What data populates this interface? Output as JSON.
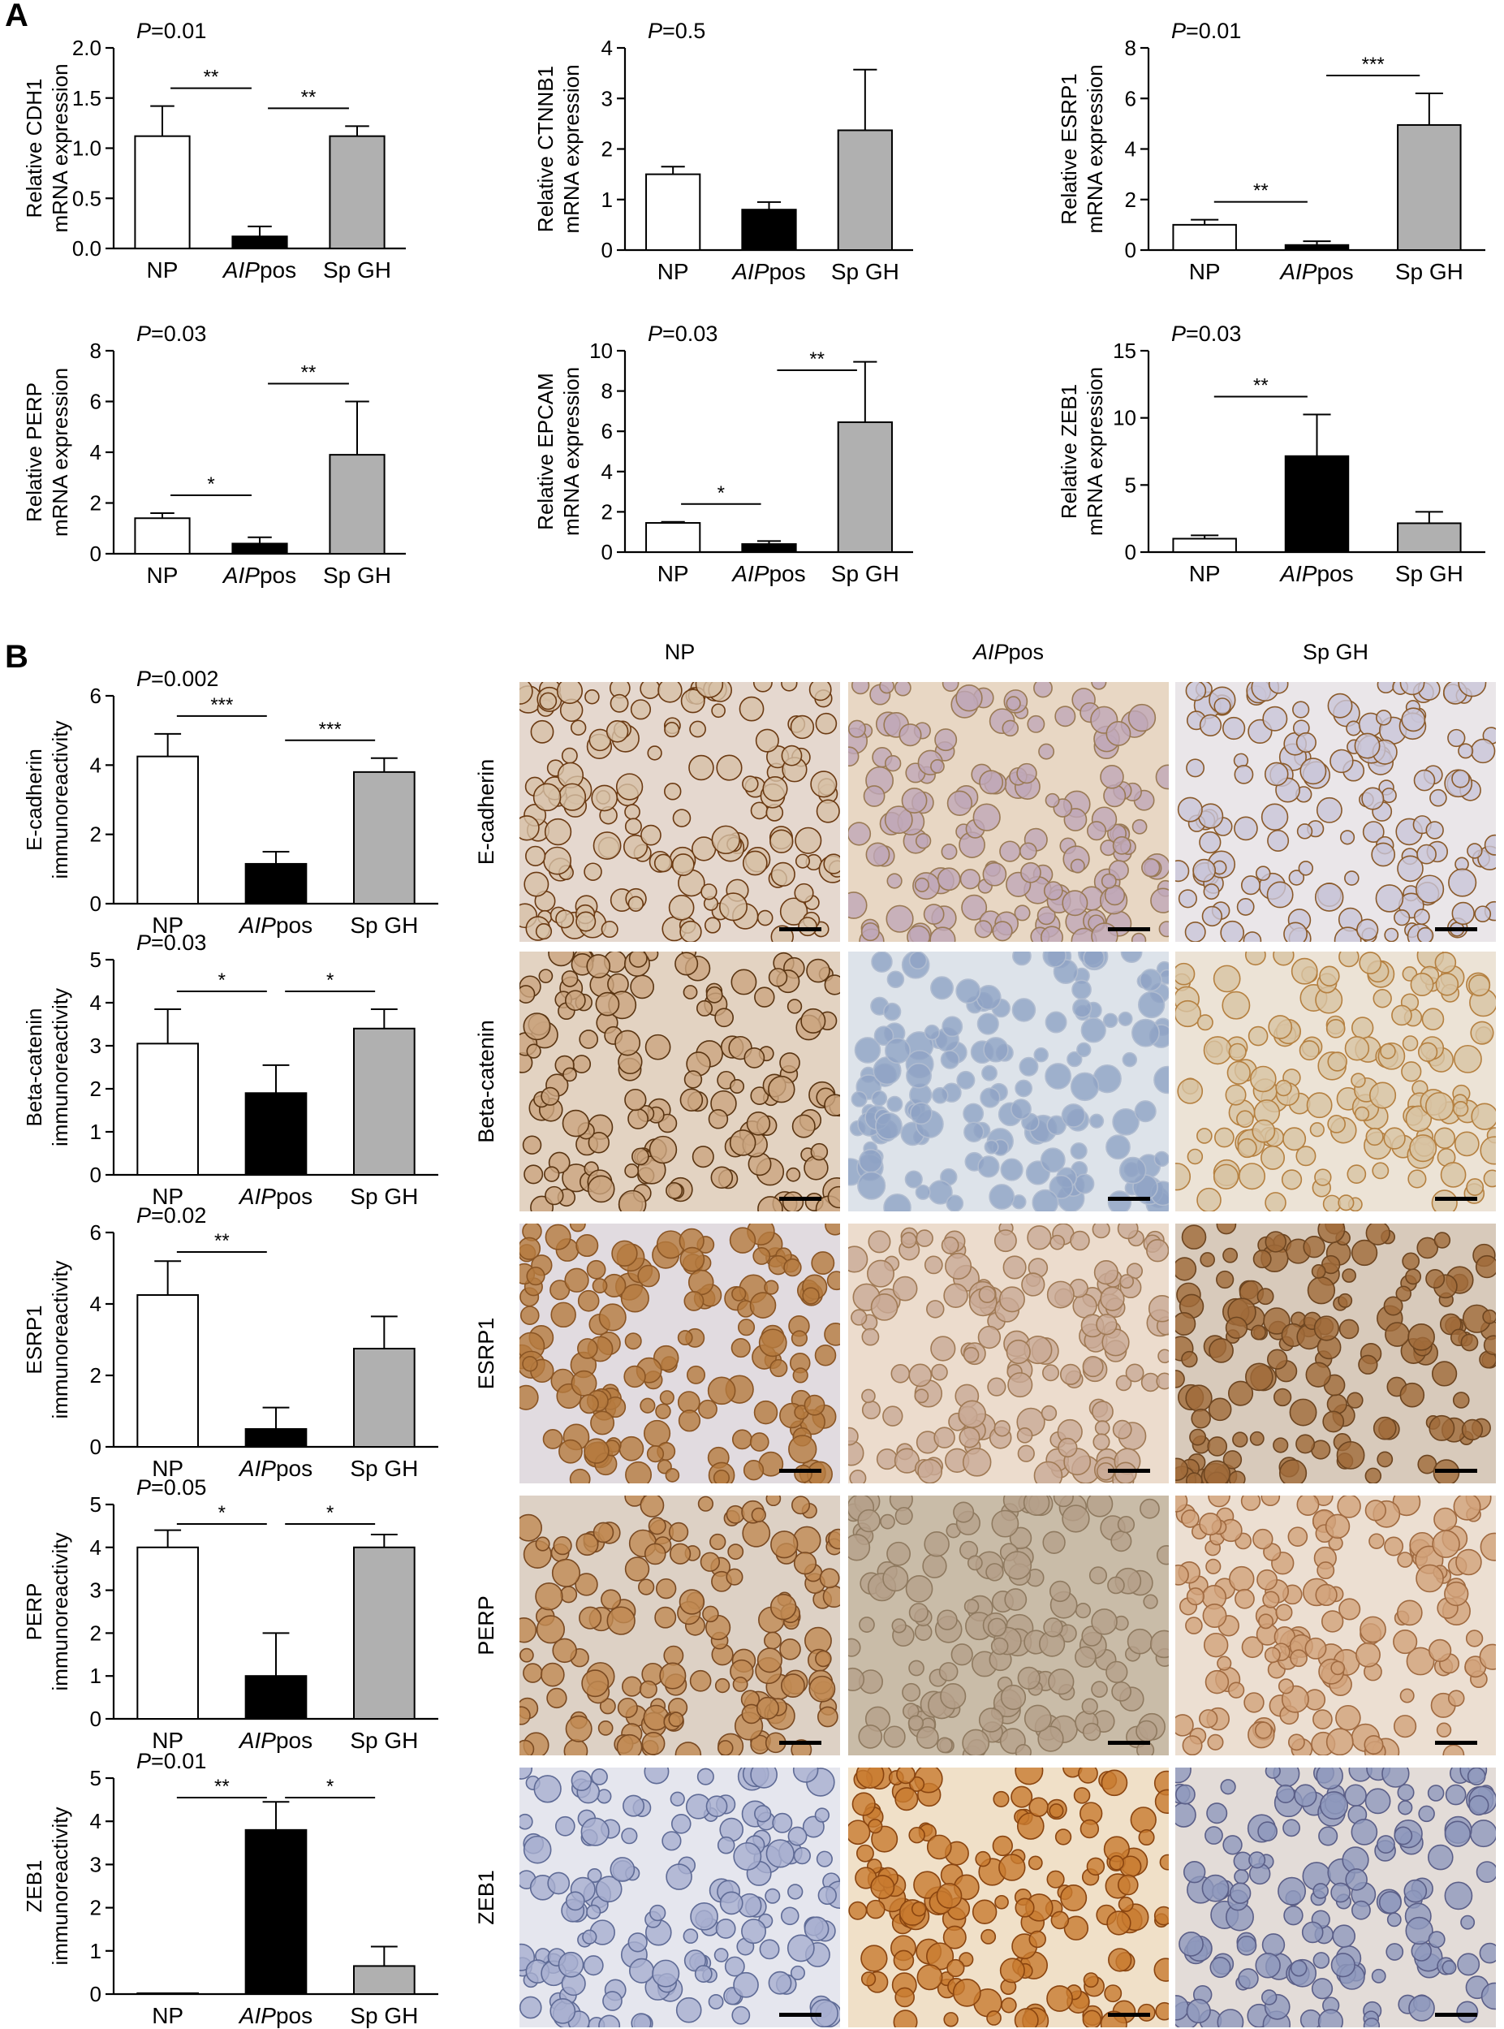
{
  "panel_labels": {
    "a": "A",
    "b": "B"
  },
  "micrograph_columns": [
    "NP",
    "AIPpos",
    "Sp GH"
  ],
  "micrograph_rows": [
    "E-cadherin",
    "Beta-catenin",
    "ESRP1",
    "PERP",
    "ZEB1"
  ],
  "colors": {
    "NP": "#ffffff",
    "AIPpos": "#000000",
    "Sp GH": "#b0b0b0"
  },
  "chart_data": [
    {
      "type": "bar",
      "id": "cdh1",
      "panel": "A",
      "categories": [
        "NP",
        "AIPpos",
        "Sp GH"
      ],
      "values": [
        1.12,
        0.12,
        1.12
      ],
      "errors": [
        0.3,
        0.1,
        0.1
      ],
      "ylabel": [
        "Relative CDH1",
        "mRNA expression"
      ],
      "ylim": [
        0,
        2
      ],
      "yticks": [
        "0.0",
        "0.5",
        "1.0",
        "1.5",
        "2.0"
      ],
      "pvalue": "=0.01",
      "significance": [
        {
          "from": 0,
          "to": 1,
          "label": "**"
        },
        {
          "from": 1,
          "to": 2,
          "label": "**"
        }
      ]
    },
    {
      "type": "bar",
      "id": "ctnnb1",
      "panel": "A",
      "categories": [
        "NP",
        "AIPpos",
        "Sp GH"
      ],
      "values": [
        1.5,
        0.8,
        2.37
      ],
      "errors": [
        0.15,
        0.15,
        1.2
      ],
      "ylabel": [
        "Relative CTNNB1",
        "mRNA expression"
      ],
      "ylim": [
        0,
        4
      ],
      "yticks": [
        "0",
        "1",
        "2",
        "3",
        "4"
      ],
      "pvalue": "=0.5",
      "significance": []
    },
    {
      "type": "bar",
      "id": "esrp1",
      "panel": "A",
      "categories": [
        "NP",
        "AIPpos",
        "Sp GH"
      ],
      "values": [
        1.0,
        0.2,
        4.95
      ],
      "errors": [
        0.2,
        0.15,
        1.25
      ],
      "ylabel": [
        "Relative ESRP1",
        "mRNA expression"
      ],
      "ylim": [
        0,
        8
      ],
      "yticks": [
        "0",
        "2",
        "4",
        "6",
        "8"
      ],
      "pvalue": "=0.01",
      "significance": [
        {
          "from": 0,
          "to": 1,
          "label": "**"
        },
        {
          "from": 1,
          "to": 2,
          "label": "***"
        }
      ]
    },
    {
      "type": "bar",
      "id": "perp",
      "panel": "A",
      "categories": [
        "NP",
        "AIPpos",
        "Sp GH"
      ],
      "values": [
        1.4,
        0.4,
        3.9
      ],
      "errors": [
        0.2,
        0.25,
        2.1
      ],
      "ylabel": [
        "Relative PERP",
        "mRNA expression"
      ],
      "ylim": [
        0,
        8
      ],
      "yticks": [
        "0",
        "2",
        "4",
        "6",
        "8"
      ],
      "pvalue": "=0.03",
      "significance": [
        {
          "from": 0,
          "to": 1,
          "label": "*"
        },
        {
          "from": 1,
          "to": 2,
          "label": "**"
        }
      ]
    },
    {
      "type": "bar",
      "id": "epcam",
      "panel": "A",
      "categories": [
        "NP",
        "AIPpos",
        "Sp GH"
      ],
      "values": [
        1.45,
        0.4,
        6.45
      ],
      "errors": [
        0.05,
        0.15,
        3.0
      ],
      "ylabel": [
        "Relative EPCAM",
        "mRNA expression"
      ],
      "ylim": [
        0,
        10
      ],
      "yticks": [
        "0",
        "2",
        "4",
        "6",
        "8",
        "10"
      ],
      "pvalue": "=0.03",
      "significance": [
        {
          "from": 0,
          "to": 1,
          "label": "*"
        },
        {
          "from": 1,
          "to": 2,
          "label": "**"
        }
      ]
    },
    {
      "type": "bar",
      "id": "zeb1mrna",
      "panel": "A",
      "categories": [
        "NP",
        "AIPpos",
        "Sp GH"
      ],
      "values": [
        1.0,
        7.15,
        2.15
      ],
      "errors": [
        0.25,
        3.1,
        0.85
      ],
      "ylabel": [
        "Relative ZEB1",
        "mRNA expression"
      ],
      "ylim": [
        0,
        15
      ],
      "yticks": [
        "0",
        "5",
        "10",
        "15"
      ],
      "pvalue": "=0.03",
      "significance": [
        {
          "from": 0,
          "to": 1,
          "label": "**"
        }
      ]
    },
    {
      "type": "bar",
      "id": "ecad",
      "panel": "B",
      "categories": [
        "NP",
        "AIPpos",
        "Sp GH"
      ],
      "values": [
        4.25,
        1.15,
        3.8
      ],
      "errors": [
        0.65,
        0.35,
        0.4
      ],
      "ylabel": [
        "E-cadherin",
        "immunoreactivity"
      ],
      "ylim": [
        0,
        6
      ],
      "yticks": [
        "0",
        "2",
        "4",
        "6"
      ],
      "pvalue": "=0.002",
      "significance": [
        {
          "from": 0,
          "to": 1,
          "label": "***"
        },
        {
          "from": 1,
          "to": 2,
          "label": "***"
        }
      ]
    },
    {
      "type": "bar",
      "id": "bcat",
      "panel": "B",
      "categories": [
        "NP",
        "AIPpos",
        "Sp GH"
      ],
      "values": [
        3.05,
        1.9,
        3.4
      ],
      "errors": [
        0.8,
        0.65,
        0.45
      ],
      "ylabel": [
        "Beta-catenin",
        "immunoreactivity"
      ],
      "ylim": [
        0,
        5
      ],
      "yticks": [
        "0",
        "1",
        "2",
        "3",
        "4",
        "5"
      ],
      "pvalue": "=0.03",
      "significance": [
        {
          "from": 0,
          "to": 1,
          "label": "*"
        },
        {
          "from": 1,
          "to": 2,
          "label": "*"
        }
      ]
    },
    {
      "type": "bar",
      "id": "esrp1ihc",
      "panel": "B",
      "categories": [
        "NP",
        "AIPpos",
        "Sp GH"
      ],
      "values": [
        4.25,
        0.5,
        2.75
      ],
      "errors": [
        0.95,
        0.6,
        0.9
      ],
      "ylabel": [
        "ESRP1",
        "immunoreactivity"
      ],
      "ylim": [
        0,
        6
      ],
      "yticks": [
        "0",
        "2",
        "4",
        "6"
      ],
      "pvalue": "=0.02",
      "significance": [
        {
          "from": 0,
          "to": 1,
          "label": "**"
        }
      ]
    },
    {
      "type": "bar",
      "id": "perpihc",
      "panel": "B",
      "categories": [
        "NP",
        "AIPpos",
        "Sp GH"
      ],
      "values": [
        4.0,
        1.0,
        4.0
      ],
      "errors": [
        0.4,
        1.0,
        0.3
      ],
      "ylabel": [
        "PERP",
        "immunoreactivity"
      ],
      "ylim": [
        0,
        5
      ],
      "yticks": [
        "0",
        "1",
        "2",
        "3",
        "4",
        "5"
      ],
      "pvalue": "=0.05",
      "significance": [
        {
          "from": 0,
          "to": 1,
          "label": "*"
        },
        {
          "from": 1,
          "to": 2,
          "label": "*"
        }
      ]
    },
    {
      "type": "bar",
      "id": "zeb1ihc",
      "panel": "B",
      "categories": [
        "NP",
        "AIPpos",
        "Sp GH"
      ],
      "values": [
        0.02,
        3.8,
        0.65
      ],
      "errors": [
        0.0,
        0.65,
        0.45
      ],
      "ylabel": [
        "ZEB1",
        "immunoreactivity"
      ],
      "ylim": [
        0,
        5
      ],
      "yticks": [
        "0",
        "1",
        "2",
        "3",
        "4",
        "5"
      ],
      "pvalue": "=0.01",
      "significance": [
        {
          "from": 0,
          "to": 1,
          "label": "**"
        },
        {
          "from": 1,
          "to": 2,
          "label": "*"
        }
      ]
    }
  ]
}
